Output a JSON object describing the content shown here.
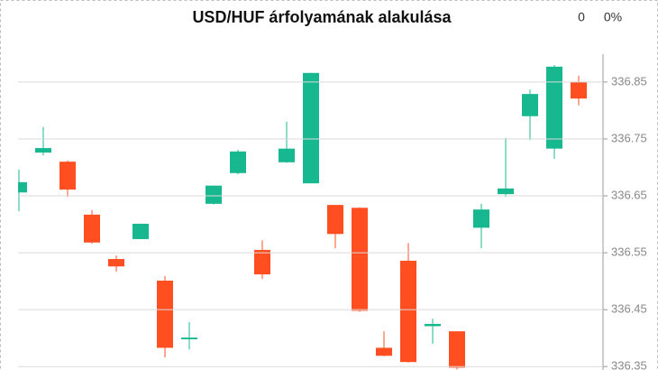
{
  "chart_data": {
    "type": "candlestick",
    "title": "USD/HUF árfolyamának alakulása",
    "price_label": "0",
    "change_label": "0%",
    "up_color": "#17b890",
    "down_color": "#ff4f20",
    "grid": true,
    "ylim": [
      336.344,
      336.899
    ],
    "yticks": [
      336.35,
      336.45,
      336.55,
      336.65,
      336.75,
      336.85
    ],
    "categories": [
      null,
      null,
      null,
      null,
      null,
      null,
      null,
      null,
      null,
      null,
      null,
      null,
      null,
      null,
      null,
      null,
      null,
      null,
      null,
      null,
      null,
      null,
      null,
      null
    ],
    "open": [
      336.656,
      336.726,
      336.71,
      336.617,
      336.539,
      336.574,
      336.501,
      336.398,
      336.636,
      336.69,
      336.555,
      336.709,
      336.672,
      336.634,
      336.629,
      336.383,
      336.536,
      336.421,
      336.412,
      336.594,
      336.653,
      336.79,
      336.733,
      336.85
    ],
    "high": [
      336.696,
      336.771,
      336.712,
      336.625,
      336.545,
      336.601,
      336.509,
      336.428,
      336.668,
      336.731,
      336.572,
      336.78,
      336.866,
      336.634,
      336.63,
      336.412,
      336.567,
      336.434,
      336.412,
      336.636,
      336.752,
      336.837,
      336.88,
      336.861
    ],
    "low": [
      336.623,
      336.721,
      336.648,
      336.566,
      336.517,
      336.574,
      336.366,
      336.38,
      336.635,
      336.688,
      336.504,
      336.708,
      336.672,
      336.558,
      336.446,
      336.368,
      336.357,
      336.39,
      336.345,
      336.558,
      336.648,
      336.748,
      336.715,
      336.809
    ],
    "close": [
      336.674,
      336.734,
      336.661,
      336.568,
      336.526,
      336.601,
      336.383,
      336.401,
      336.668,
      336.728,
      336.512,
      336.733,
      336.866,
      336.583,
      336.448,
      336.369,
      336.358,
      336.425,
      336.348,
      336.626,
      336.663,
      336.829,
      336.877,
      336.821
    ]
  }
}
